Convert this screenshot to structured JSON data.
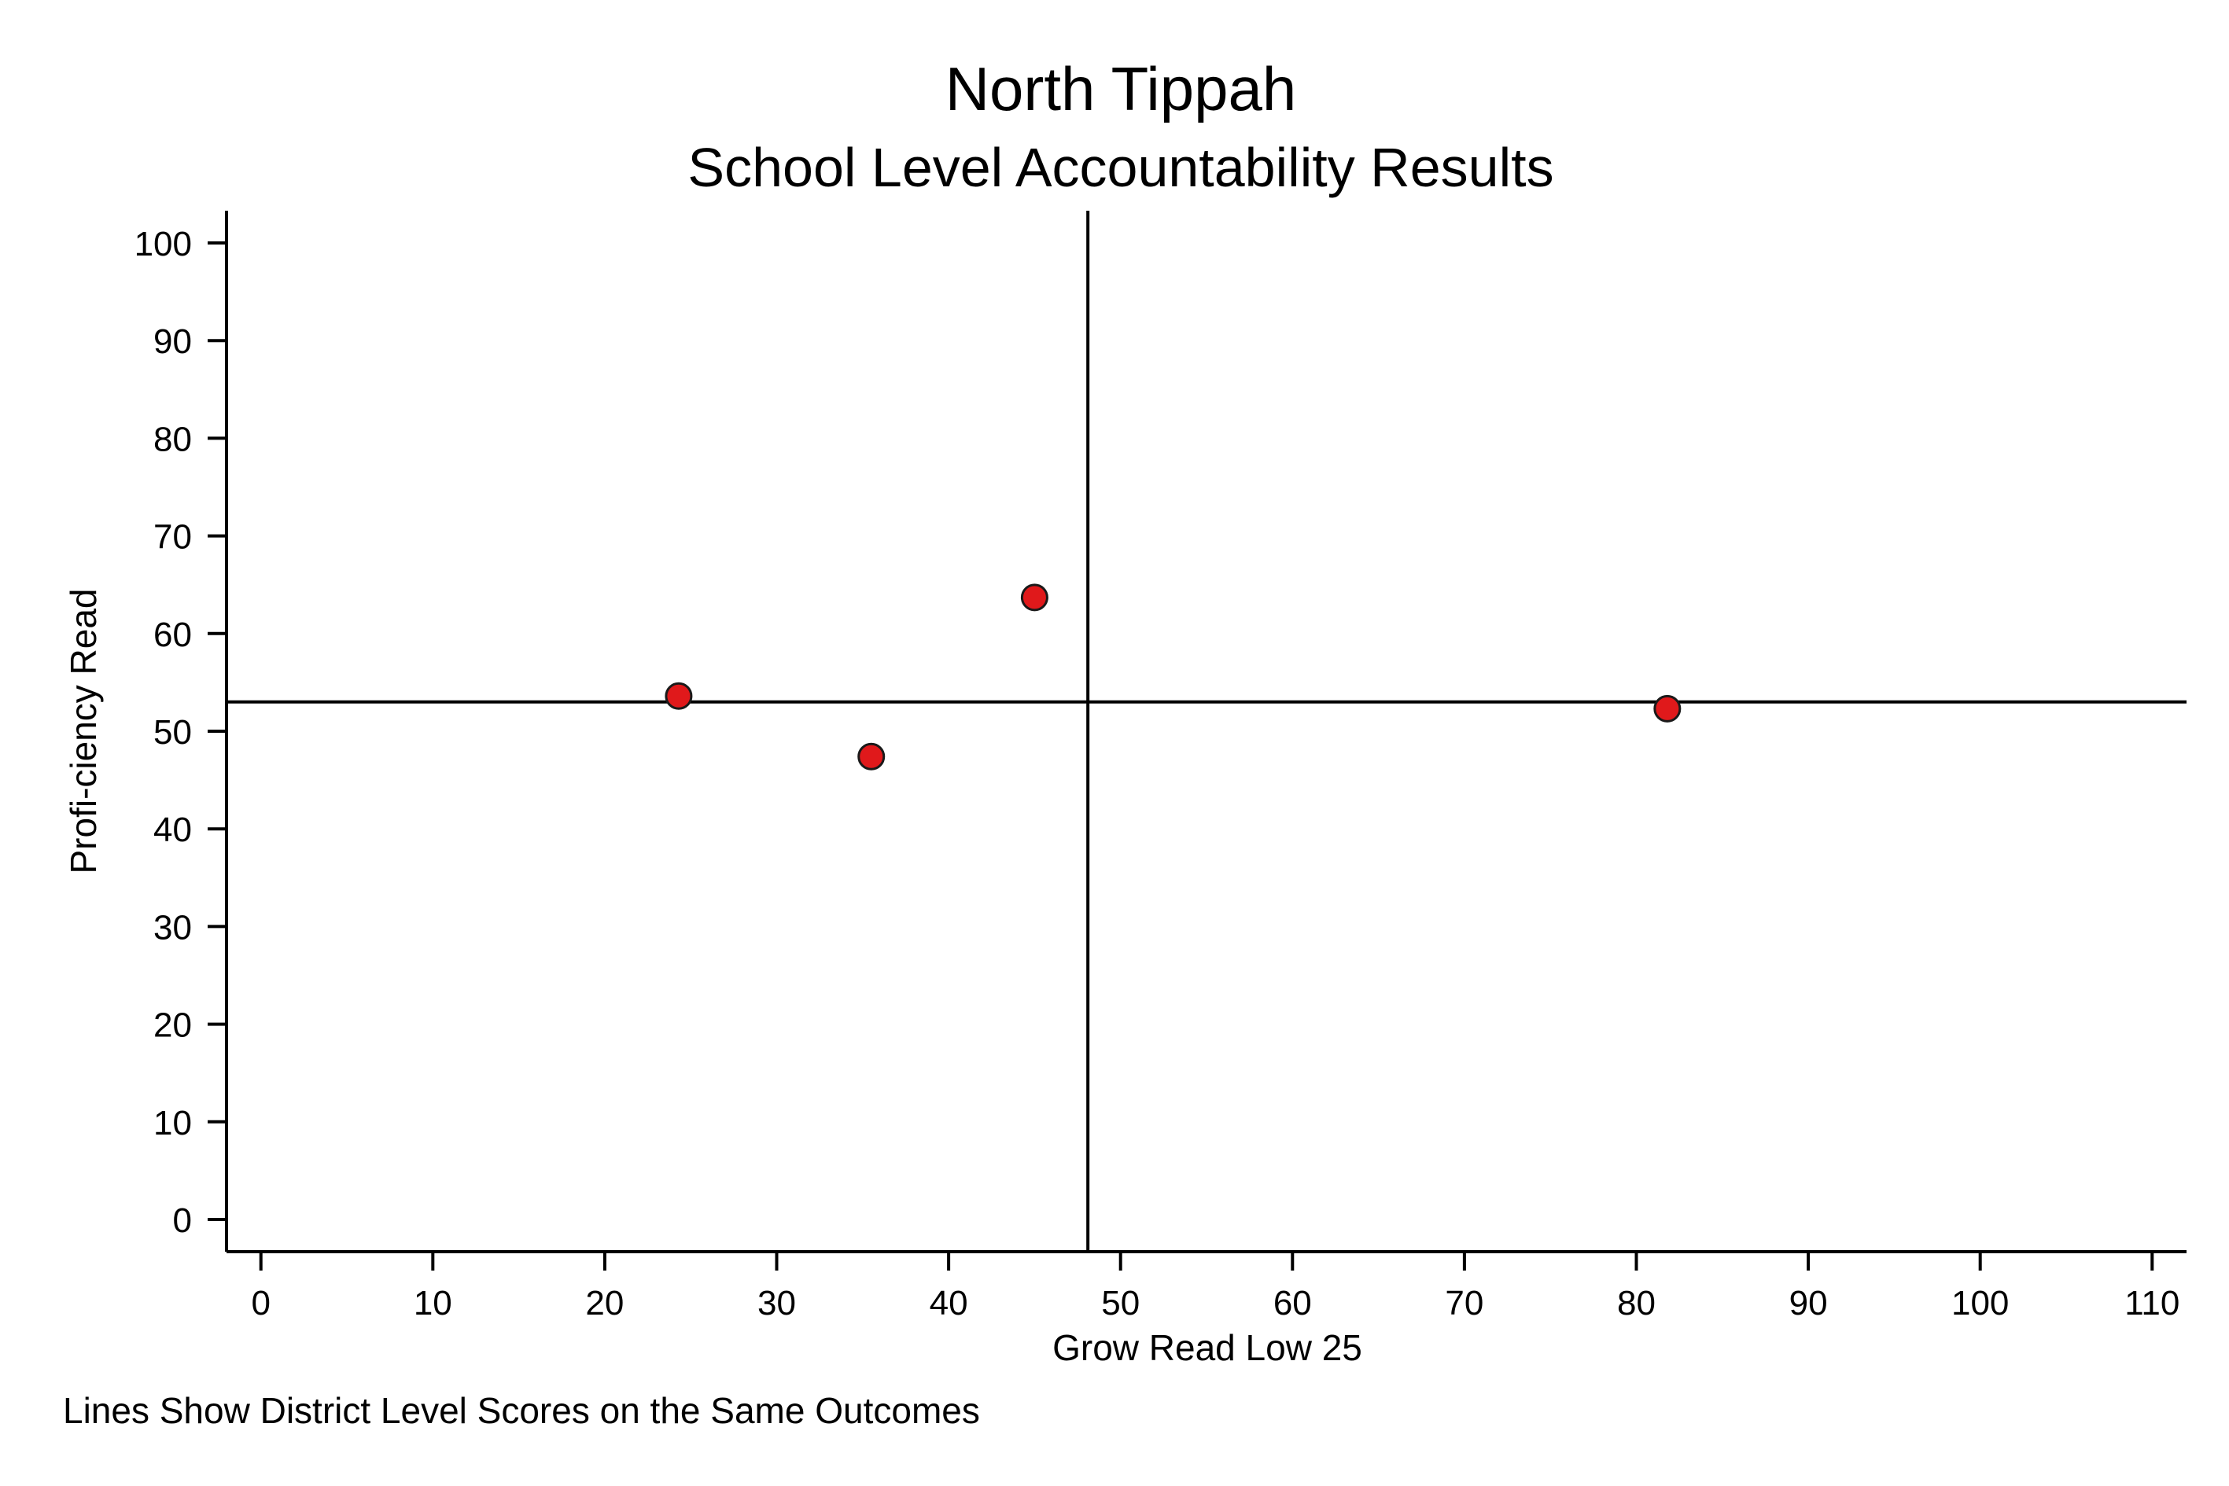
{
  "chart_data": {
    "type": "scatter",
    "title": "North Tippah",
    "subtitle": "School Level Accountability Results",
    "xlabel": "Grow Read Low 25",
    "ylabel": "Profi-ciency Read",
    "note": "Lines Show District Level Scores on the Same Outcomes",
    "xlim": [
      -2,
      112
    ],
    "ylim": [
      -3.3,
      103.3
    ],
    "xticks": [
      0,
      10,
      20,
      30,
      40,
      50,
      60,
      70,
      80,
      90,
      100,
      110
    ],
    "yticks": [
      0,
      10,
      20,
      30,
      40,
      50,
      60,
      70,
      80,
      90,
      100
    ],
    "grid": false,
    "points": [
      {
        "x": 24.3,
        "y": 53.6
      },
      {
        "x": 35.5,
        "y": 47.4
      },
      {
        "x": 45.0,
        "y": 63.7
      },
      {
        "x": 81.8,
        "y": 52.3
      }
    ],
    "reference_lines": {
      "x": 48.1,
      "y": 53.0
    },
    "marker_color": "#e0191b",
    "marker_edge_color": "#1a1a1a",
    "line_color": "#000000"
  }
}
